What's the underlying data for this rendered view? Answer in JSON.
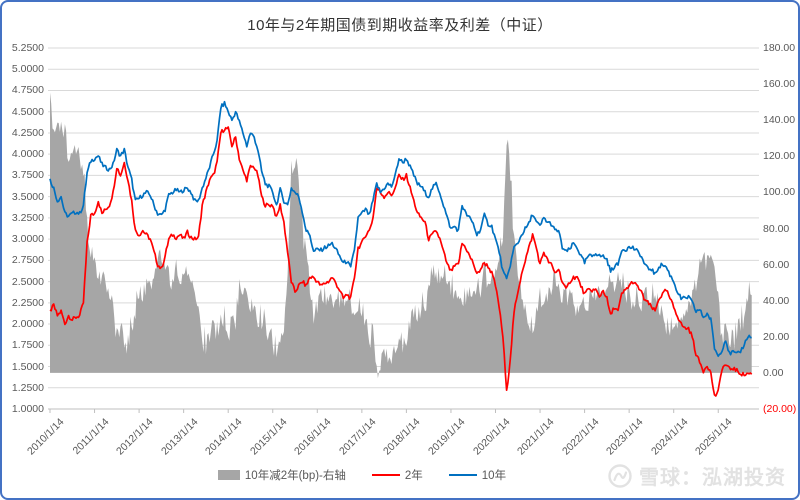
{
  "title": "10年与2年期国债到期收益率及利差（中证）",
  "colors": {
    "border": "#4472C4",
    "grid": "#D9D9D9",
    "axis_line": "#BFBFBF",
    "axis_text": "#595959",
    "line_2y": "#FF0000",
    "line_10y": "#0070C0",
    "area_spread": "#A6A6A6",
    "negative_tick": "#FF0000",
    "watermark": "#E2E2E2"
  },
  "legend": {
    "items": [
      {
        "label": "10年减2年(bp)-右轴",
        "type": "area",
        "color": "#A6A6A6"
      },
      {
        "label": "2年",
        "type": "line",
        "color": "#FF0000"
      },
      {
        "label": "10年",
        "type": "line",
        "color": "#0070C0"
      }
    ]
  },
  "watermark": {
    "icon": "xueqiu-snowball-logo",
    "text": "雪球：泓湖投资"
  },
  "chart_data": {
    "type": "line",
    "title": "10年与2年期国债到期收益率及利差（中证）",
    "frequency": "monthly",
    "x_start": "2010-01",
    "x_end": "2025-10",
    "grid": "horizontal",
    "legend_position": "bottom",
    "x_tick_labels": [
      "2010/1/14",
      "2011/1/14",
      "2012/1/14",
      "2013/1/14",
      "2014/1/14",
      "2015/1/14",
      "2016/1/14",
      "2017/1/14",
      "2018/1/14",
      "2019/1/14",
      "2020/1/14",
      "2021/1/14",
      "2022/1/14",
      "2023/1/14",
      "2024/1/14",
      "2025/1/14"
    ],
    "left_axis": {
      "min": 1.0,
      "max": 5.25,
      "step": 0.25,
      "labels": [
        "5.2500",
        "5.0000",
        "4.7500",
        "4.5000",
        "4.2500",
        "4.0000",
        "3.7500",
        "3.5000",
        "3.2500",
        "3.0000",
        "2.7500",
        "2.5000",
        "2.2500",
        "2.0000",
        "1.7500",
        "1.5000",
        "1.2500",
        "1.0000"
      ]
    },
    "right_axis": {
      "min": -20,
      "max": 180,
      "step": 20,
      "labels": [
        "180.00",
        "160.00",
        "140.00",
        "120.00",
        "100.00",
        "80.00",
        "60.00",
        "40.00",
        "20.00",
        "0.00",
        "(20.00)"
      ]
    },
    "series": [
      {
        "name": "2年",
        "axis": "left",
        "color": "#FF0000",
        "values": [
          2.15,
          2.22,
          2.1,
          2.15,
          2.0,
          2.1,
          2.05,
          2.08,
          2.1,
          2.25,
          2.95,
          3.28,
          3.3,
          3.45,
          3.3,
          3.35,
          3.4,
          3.55,
          3.85,
          3.75,
          3.9,
          3.7,
          3.45,
          3.1,
          3.05,
          3.1,
          3.05,
          3.0,
          2.85,
          2.7,
          2.65,
          2.8,
          3.0,
          3.05,
          3.02,
          3.05,
          3.0,
          3.08,
          3.02,
          3.0,
          3.02,
          3.4,
          3.55,
          3.7,
          3.75,
          3.9,
          4.25,
          4.3,
          4.3,
          4.1,
          4.2,
          3.95,
          3.8,
          3.7,
          3.85,
          3.85,
          3.75,
          3.5,
          3.4,
          3.4,
          3.4,
          3.25,
          3.4,
          3.2,
          2.85,
          2.5,
          2.38,
          2.45,
          2.5,
          2.45,
          2.55,
          2.55,
          2.5,
          2.45,
          2.48,
          2.5,
          2.55,
          2.48,
          2.4,
          2.3,
          2.35,
          2.3,
          2.55,
          2.9,
          2.95,
          3.05,
          3.1,
          3.25,
          3.6,
          3.55,
          3.5,
          3.55,
          3.52,
          3.6,
          3.75,
          3.7,
          3.75,
          3.6,
          3.45,
          3.3,
          3.25,
          3.2,
          3.0,
          3.05,
          3.1,
          3.0,
          2.85,
          2.7,
          2.62,
          2.68,
          2.7,
          2.95,
          2.9,
          2.8,
          2.72,
          2.58,
          2.65,
          2.72,
          2.68,
          2.6,
          2.45,
          2.2,
          1.85,
          1.2,
          1.6,
          2.15,
          2.35,
          2.6,
          2.75,
          2.9,
          3.05,
          2.9,
          2.7,
          2.85,
          2.75,
          2.7,
          2.6,
          2.65,
          2.5,
          2.4,
          2.5,
          2.55,
          2.55,
          2.45,
          2.35,
          2.4,
          2.4,
          2.4,
          2.32,
          2.4,
          2.3,
          2.1,
          2.2,
          2.15,
          2.35,
          2.4,
          2.45,
          2.5,
          2.45,
          2.4,
          2.3,
          2.25,
          2.2,
          2.15,
          2.3,
          2.35,
          2.4,
          2.3,
          2.2,
          2.1,
          2.0,
          1.95,
          1.95,
          1.85,
          1.65,
          1.55,
          1.45,
          1.52,
          1.42,
          1.15,
          1.2,
          1.48,
          1.52,
          1.47,
          1.48,
          1.45,
          1.42,
          1.4,
          1.42,
          1.41
        ]
      },
      {
        "name": "10年",
        "axis": "left",
        "color": "#0070C0",
        "values": [
          3.7,
          3.6,
          3.45,
          3.5,
          3.3,
          3.27,
          3.3,
          3.32,
          3.3,
          3.4,
          3.78,
          3.92,
          3.95,
          3.98,
          3.88,
          3.84,
          3.82,
          3.88,
          4.05,
          3.98,
          4.05,
          3.85,
          3.7,
          3.45,
          3.48,
          3.52,
          3.55,
          3.52,
          3.4,
          3.3,
          3.28,
          3.35,
          3.52,
          3.55,
          3.58,
          3.55,
          3.58,
          3.6,
          3.55,
          3.45,
          3.45,
          3.6,
          3.72,
          3.85,
          4.0,
          4.15,
          4.55,
          4.6,
          4.5,
          4.4,
          4.5,
          4.38,
          4.25,
          4.1,
          4.25,
          4.2,
          4.05,
          3.8,
          3.65,
          3.62,
          3.55,
          3.4,
          3.58,
          3.45,
          3.4,
          3.6,
          3.55,
          3.5,
          3.32,
          3.1,
          3.05,
          2.85,
          2.88,
          2.87,
          2.9,
          2.92,
          2.95,
          2.88,
          2.8,
          2.72,
          2.74,
          2.66,
          2.88,
          3.25,
          3.3,
          3.35,
          3.28,
          3.45,
          3.65,
          3.55,
          3.6,
          3.65,
          3.62,
          3.75,
          3.95,
          3.9,
          3.95,
          3.85,
          3.75,
          3.65,
          3.62,
          3.55,
          3.5,
          3.6,
          3.65,
          3.55,
          3.4,
          3.25,
          3.12,
          3.15,
          3.1,
          3.4,
          3.3,
          3.25,
          3.18,
          3.05,
          3.12,
          3.28,
          3.18,
          3.15,
          3.0,
          2.85,
          2.62,
          2.52,
          2.7,
          2.9,
          2.95,
          3.05,
          3.12,
          3.18,
          3.3,
          3.2,
          3.15,
          3.25,
          3.2,
          3.18,
          3.1,
          3.1,
          2.9,
          2.85,
          2.88,
          2.95,
          2.9,
          2.8,
          2.72,
          2.8,
          2.8,
          2.84,
          2.8,
          2.8,
          2.76,
          2.62,
          2.68,
          2.7,
          2.88,
          2.88,
          2.9,
          2.9,
          2.86,
          2.82,
          2.72,
          2.65,
          2.65,
          2.58,
          2.68,
          2.7,
          2.67,
          2.58,
          2.5,
          2.38,
          2.3,
          2.3,
          2.32,
          2.25,
          2.15,
          2.17,
          2.08,
          2.12,
          2.05,
          1.72,
          1.62,
          1.7,
          1.82,
          1.65,
          1.67,
          1.64,
          1.68,
          1.76,
          1.86,
          1.84
        ]
      },
      {
        "name": "10年减2年(bp)-右轴",
        "axis": "right",
        "color": "#A6A6A6",
        "type": "area",
        "baseline": 0,
        "derived_from": "(10年 − 2年) × 100"
      }
    ]
  }
}
